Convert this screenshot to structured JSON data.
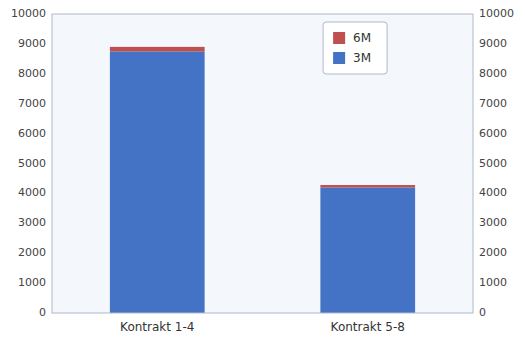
{
  "chart_data": {
    "type": "bar",
    "stacked": true,
    "categories": [
      "Kontrakt 1-4",
      "Kontrakt 5-8"
    ],
    "series": [
      {
        "name": "3M",
        "color": "#4472C4",
        "values": [
          8750,
          4200
        ]
      },
      {
        "name": "6M",
        "color": "#C0504D",
        "values": [
          150,
          80
        ]
      }
    ],
    "ylim": [
      0,
      10000
    ],
    "yticks": [
      0,
      1000,
      2000,
      3000,
      4000,
      5000,
      6000,
      7000,
      8000,
      9000,
      10000
    ],
    "y2lim": [
      0,
      10000
    ],
    "y2ticks": [
      0,
      1000,
      2000,
      3000,
      4000,
      5000,
      6000,
      7000,
      8000,
      9000,
      10000
    ],
    "grid": false,
    "legend": "upper right"
  }
}
